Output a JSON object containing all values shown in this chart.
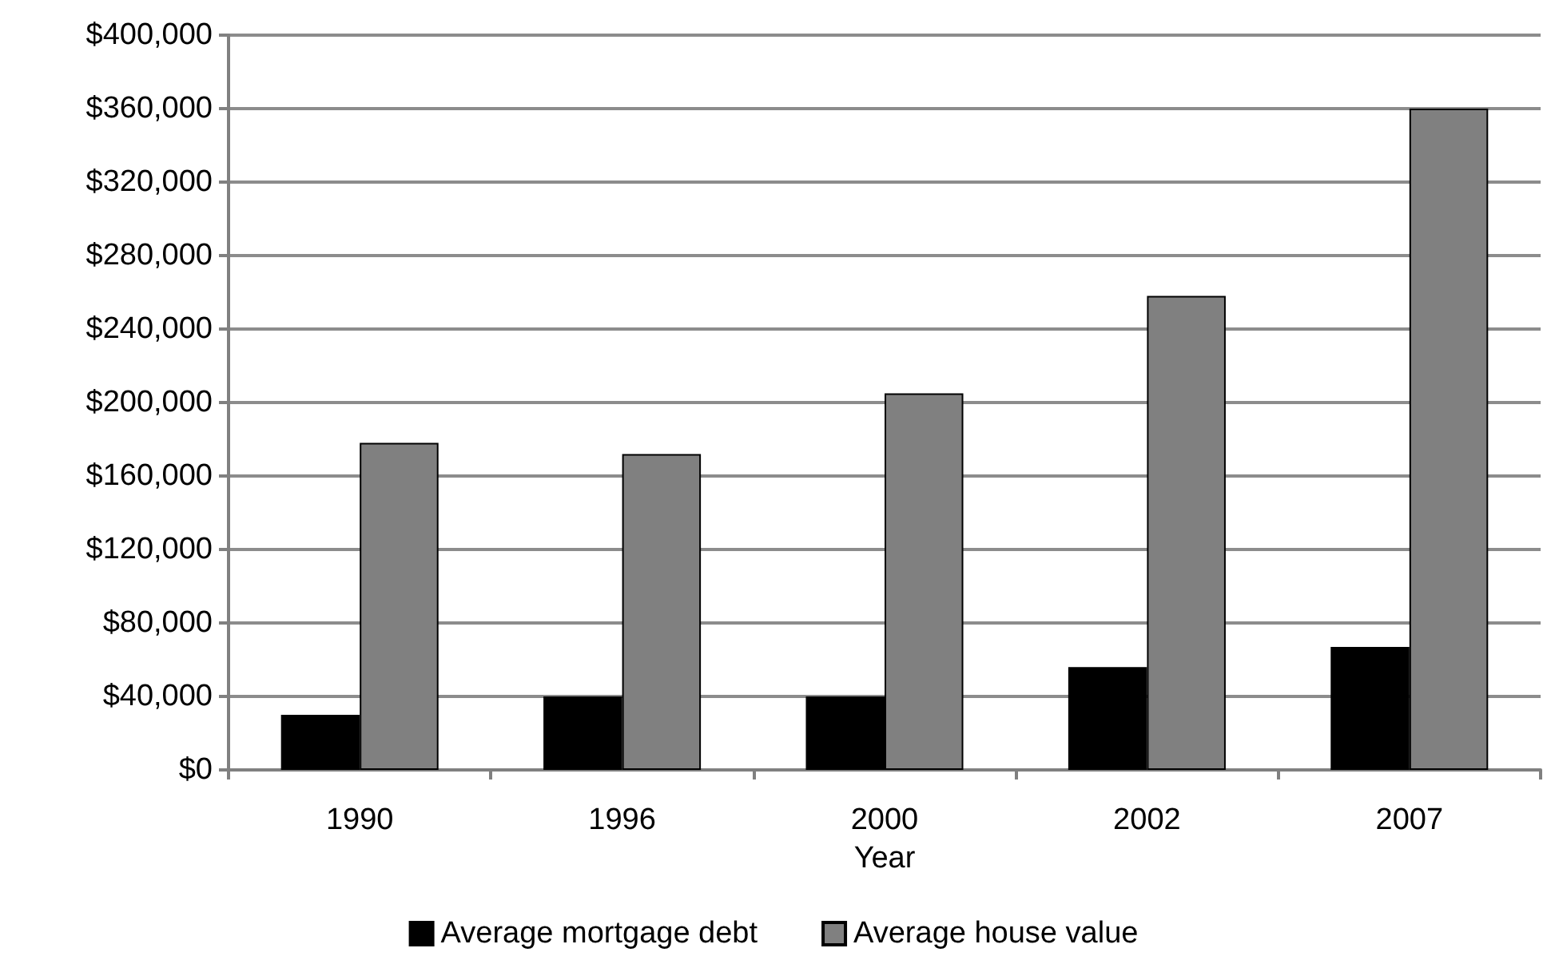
{
  "chart_data": {
    "type": "bar",
    "xlabel": "Year",
    "categories": [
      "1990",
      "1996",
      "2000",
      "2002",
      "2007"
    ],
    "series": [
      {
        "name": "Average mortgage debt",
        "color": "#000000",
        "values": [
          30000,
          40000,
          40000,
          56000,
          67000
        ]
      },
      {
        "name": "Average house value",
        "color": "#808080",
        "values": [
          178000,
          172000,
          205000,
          258000,
          360000
        ]
      }
    ],
    "ylim": [
      0,
      400000
    ],
    "yticks": [
      {
        "value": 0,
        "label": "$0"
      },
      {
        "value": 40000,
        "label": "$40,000"
      },
      {
        "value": 80000,
        "label": "$80,000"
      },
      {
        "value": 120000,
        "label": "$120,000"
      },
      {
        "value": 160000,
        "label": "$160,000"
      },
      {
        "value": 200000,
        "label": "$200,000"
      },
      {
        "value": 240000,
        "label": "$240,000"
      },
      {
        "value": 280000,
        "label": "$280,000"
      },
      {
        "value": 320000,
        "label": "$320,000"
      },
      {
        "value": 360000,
        "label": "$360,000"
      },
      {
        "value": 400000,
        "label": "$400,000"
      }
    ],
    "grid": true,
    "legend": "bottom"
  }
}
